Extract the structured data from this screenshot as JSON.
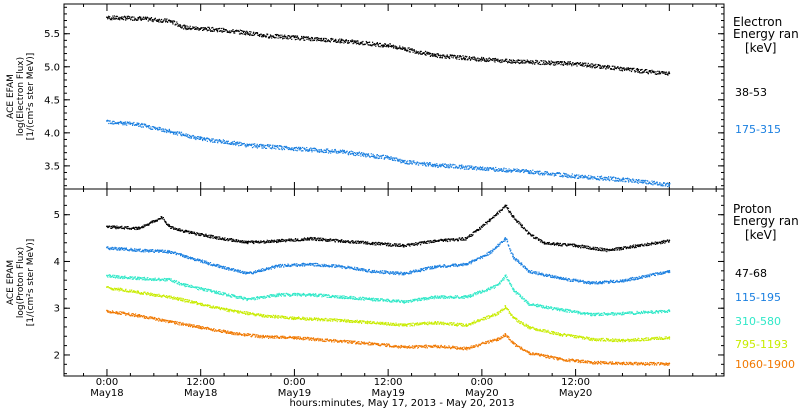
{
  "chart_data": [
    {
      "type": "scatter",
      "ylabel_lines": [
        "ACE EFAM",
        "log(Electron Flux)",
        "[1/(cm²s ster MeV)]"
      ],
      "ylim": [
        3.15,
        5.95
      ],
      "yticks": [
        "5.5",
        "5.0",
        "4.5",
        "4.0",
        "3.5"
      ],
      "legend_title": [
        "Electron",
        "Energy ran"
      ],
      "legend_unit": "[keV]",
      "series": [
        {
          "name": "38-53",
          "color": "#000000",
          "x": [
            0,
            4,
            8,
            10,
            14,
            18,
            20,
            24,
            30,
            36,
            38,
            42,
            48,
            54,
            60,
            64,
            68,
            72
          ],
          "y": [
            5.75,
            5.74,
            5.7,
            5.6,
            5.57,
            5.52,
            5.48,
            5.45,
            5.4,
            5.33,
            5.28,
            5.18,
            5.12,
            5.08,
            5.05,
            5.0,
            4.95,
            4.9
          ]
        },
        {
          "name": "175-315",
          "color": "#1a7fe0",
          "x": [
            0,
            4,
            8,
            12,
            18,
            24,
            30,
            36,
            38,
            42,
            48,
            54,
            60,
            66,
            72
          ],
          "y": [
            4.18,
            4.13,
            4.03,
            3.92,
            3.82,
            3.77,
            3.72,
            3.63,
            3.57,
            3.52,
            3.47,
            3.42,
            3.35,
            3.3,
            3.22
          ]
        }
      ]
    },
    {
      "type": "scatter",
      "ylabel_lines": [
        "ACE EPAM",
        "log(Proton Flux)",
        "[1/(cm²s ster MeV)]"
      ],
      "ylim": [
        1.55,
        5.55
      ],
      "yticks": [
        "5",
        "4",
        "3",
        "2"
      ],
      "legend_title": [
        "Proton",
        "Energy ran"
      ],
      "legend_unit": "[keV]",
      "series": [
        {
          "name": "47-68",
          "color": "#000000",
          "x": [
            0,
            4,
            7,
            8,
            10,
            14,
            18,
            22,
            26,
            30,
            34,
            38,
            42,
            46,
            49,
            51,
            52,
            54,
            56,
            60,
            64,
            68,
            72
          ],
          "y": [
            4.75,
            4.72,
            4.95,
            4.75,
            4.65,
            4.52,
            4.42,
            4.45,
            4.5,
            4.45,
            4.4,
            4.35,
            4.45,
            4.5,
            4.9,
            5.2,
            4.95,
            4.6,
            4.4,
            4.35,
            4.25,
            4.35,
            4.45
          ]
        },
        {
          "name": "115-195",
          "color": "#1a7fe0",
          "x": [
            0,
            4,
            8,
            10,
            14,
            18,
            22,
            26,
            30,
            34,
            38,
            42,
            46,
            49,
            51,
            52,
            54,
            58,
            62,
            66,
            72
          ],
          "y": [
            4.3,
            4.25,
            4.22,
            4.12,
            3.92,
            3.75,
            3.92,
            3.95,
            3.9,
            3.8,
            3.75,
            3.9,
            3.95,
            4.2,
            4.5,
            4.1,
            3.8,
            3.65,
            3.55,
            3.6,
            3.8
          ]
        },
        {
          "name": "310-580",
          "color": "#30e8c8",
          "x": [
            0,
            4,
            8,
            10,
            14,
            18,
            22,
            26,
            30,
            34,
            38,
            42,
            46,
            50,
            51,
            52,
            54,
            58,
            62,
            66,
            72
          ],
          "y": [
            3.7,
            3.65,
            3.62,
            3.5,
            3.35,
            3.2,
            3.3,
            3.3,
            3.25,
            3.2,
            3.15,
            3.25,
            3.25,
            3.5,
            3.7,
            3.4,
            3.1,
            2.98,
            2.88,
            2.9,
            2.95
          ]
        },
        {
          "name": "795-1193",
          "color": "#c8ec00",
          "x": [
            0,
            4,
            8,
            12,
            16,
            20,
            24,
            30,
            34,
            38,
            42,
            46,
            50,
            51,
            52,
            54,
            58,
            62,
            66,
            72
          ],
          "y": [
            3.45,
            3.35,
            3.25,
            3.1,
            2.95,
            2.85,
            2.8,
            2.75,
            2.7,
            2.65,
            2.7,
            2.65,
            2.9,
            3.05,
            2.8,
            2.6,
            2.45,
            2.35,
            2.32,
            2.38
          ]
        },
        {
          "name": "1060-1900",
          "color": "#f07800",
          "x": [
            0,
            4,
            8,
            12,
            16,
            20,
            24,
            30,
            34,
            38,
            42,
            46,
            50,
            51,
            52,
            54,
            58,
            62,
            66,
            72
          ],
          "y": [
            2.95,
            2.85,
            2.72,
            2.6,
            2.48,
            2.4,
            2.38,
            2.3,
            2.25,
            2.18,
            2.2,
            2.15,
            2.35,
            2.45,
            2.25,
            2.05,
            1.92,
            1.85,
            1.83,
            1.82
          ]
        }
      ]
    }
  ],
  "x_axis": {
    "xlim_hours": [
      -5.5,
      79
    ],
    "ticks": [
      {
        "hour": 0,
        "time": "0:00",
        "date": "May18"
      },
      {
        "hour": 12,
        "time": "12:00",
        "date": "May18"
      },
      {
        "hour": 24,
        "time": "0:00",
        "date": "May19"
      },
      {
        "hour": 36,
        "time": "12:00",
        "date": "May19"
      },
      {
        "hour": 48,
        "time": "0:00",
        "date": "May20"
      },
      {
        "hour": 60,
        "time": "12:00",
        "date": "May20"
      }
    ],
    "title": "hours:minutes, May 17, 2013 - May 20, 2013"
  }
}
